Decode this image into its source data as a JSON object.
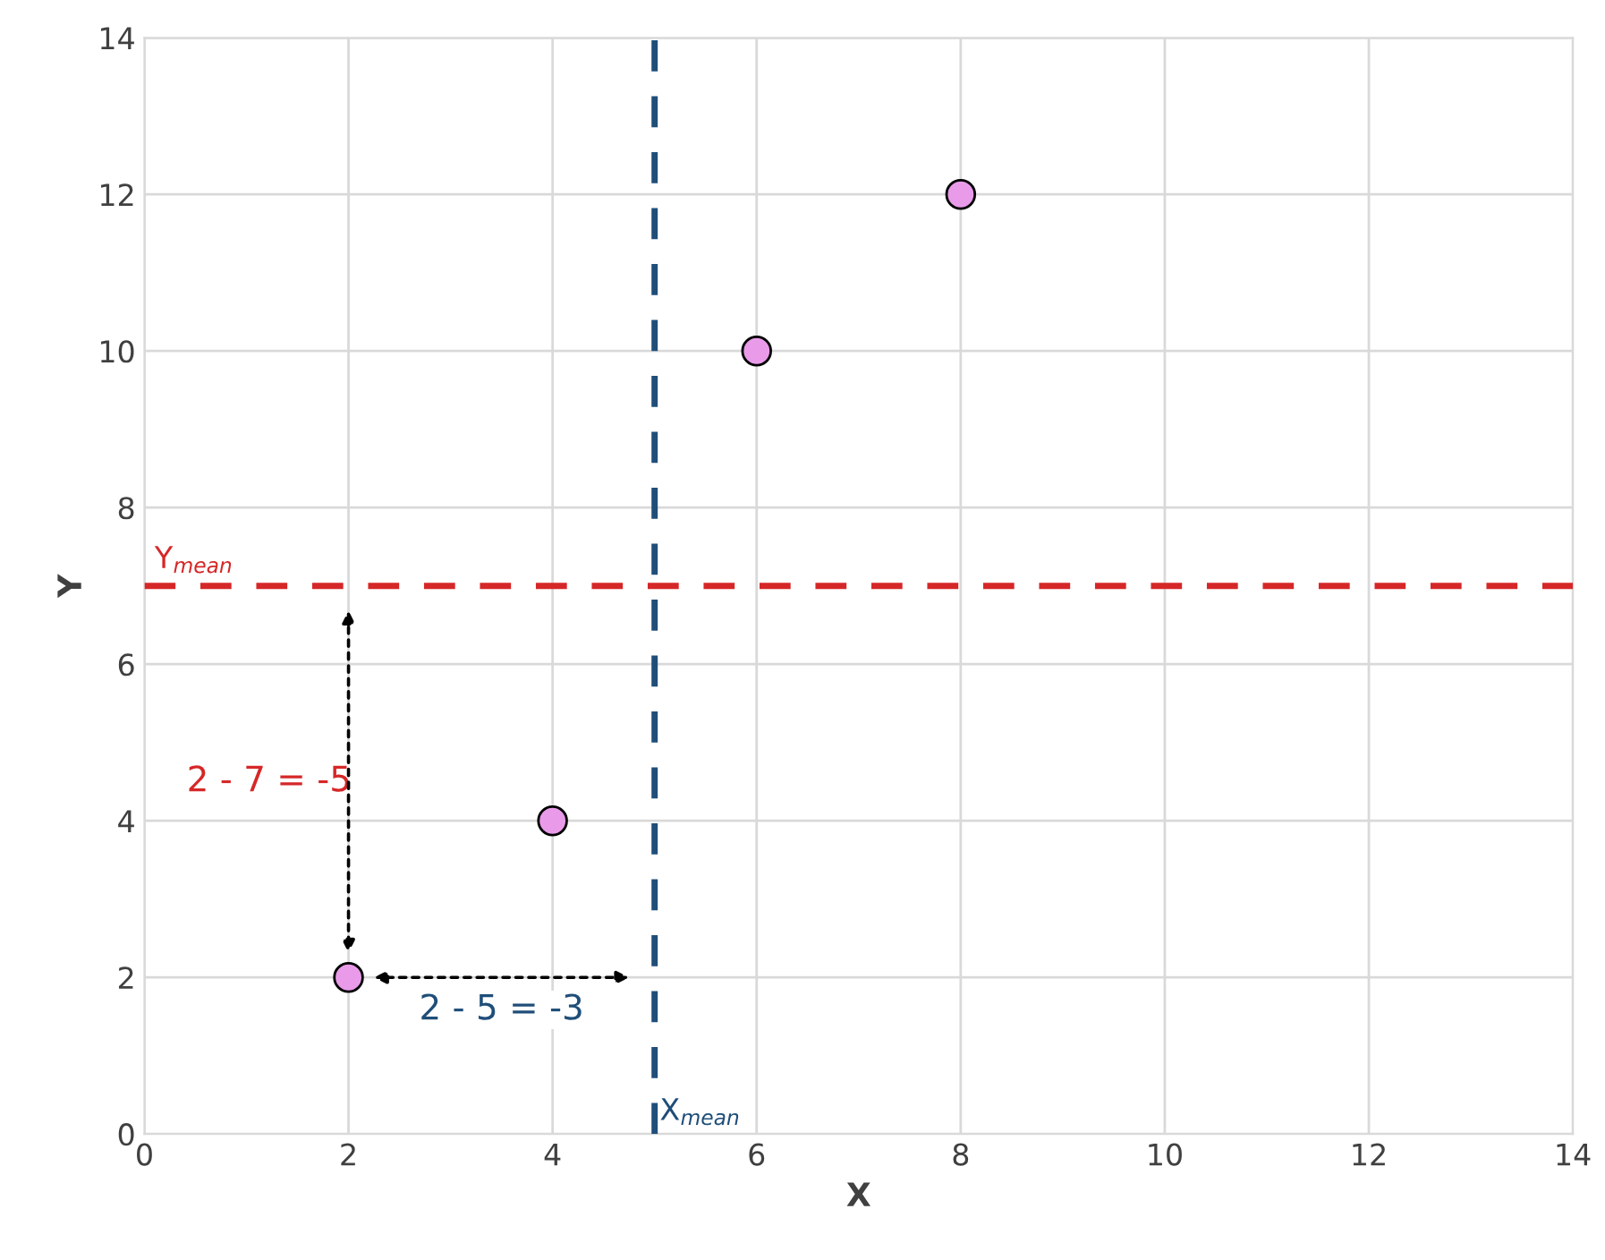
{
  "chart_data": {
    "type": "scatter",
    "xlabel": "X",
    "ylabel": "Y",
    "x": [
      2,
      4,
      6,
      8
    ],
    "series": [
      {
        "color": "#e99be9",
        "values": [
          2,
          4,
          10,
          12
        ]
      }
    ],
    "marker": "circle",
    "xlim": [
      0,
      14
    ],
    "ylim": [
      0,
      14
    ],
    "xticks": [
      0,
      2,
      4,
      6,
      8,
      10,
      12,
      14
    ],
    "yticks": [
      0,
      2,
      4,
      6,
      8,
      10,
      12,
      14
    ],
    "grid": true,
    "ref_lines": [
      {
        "axis": "y",
        "value": 7,
        "label": "Y$_{mean}$",
        "color": "#d62728",
        "line_style": "dashed"
      },
      {
        "axis": "x",
        "value": 5,
        "label": "X$_{mean}$",
        "color": "#1f4e79",
        "line_style": "dashed"
      }
    ],
    "annotations": [
      "2 - 7 = -5",
      "2 - 5 = -3"
    ]
  }
}
